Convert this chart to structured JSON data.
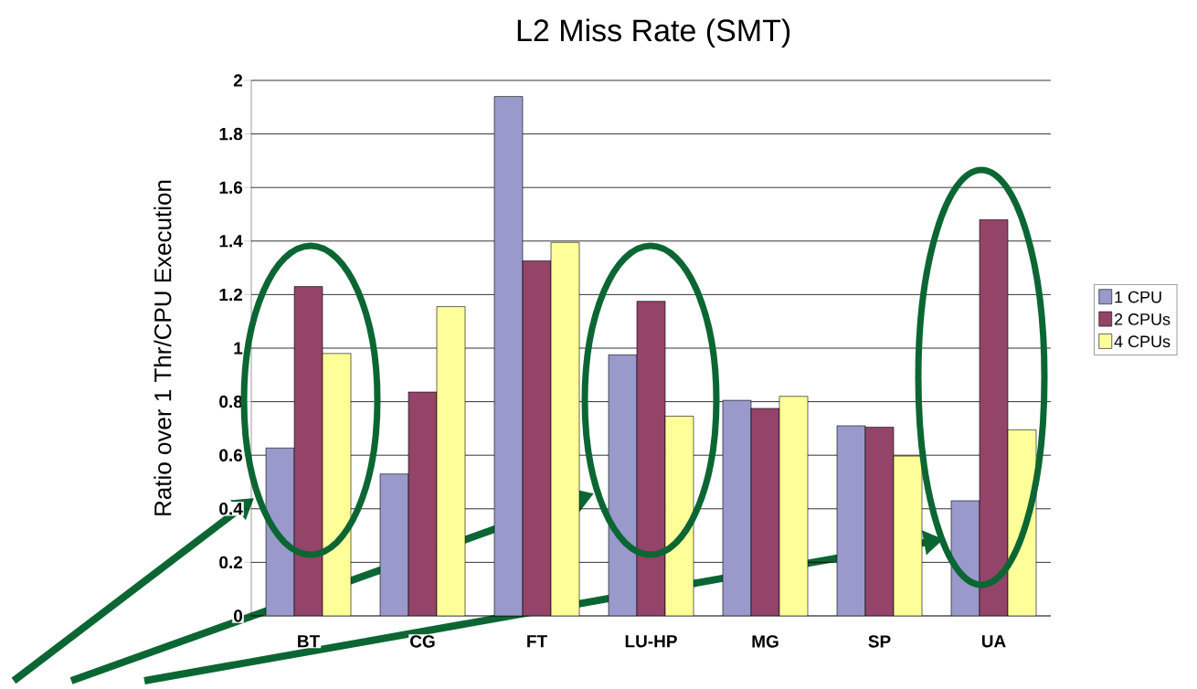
{
  "chart_data": {
    "type": "bar",
    "title": "L2 Miss Rate (SMT)",
    "ylabel": "Ratio over 1 Thr/CPU Execution",
    "categories": [
      "BT",
      "CG",
      "FT",
      "LU-HP",
      "MG",
      "SP",
      "UA"
    ],
    "series": [
      {
        "name": "1 CPU",
        "color": "#9999cc",
        "values": [
          0.627,
          0.53,
          1.94,
          0.975,
          0.805,
          0.71,
          0.43
        ]
      },
      {
        "name": "2 CPUs",
        "color": "#944468",
        "values": [
          1.23,
          0.836,
          1.326,
          1.175,
          0.775,
          0.705,
          1.48
        ]
      },
      {
        "name": "4 CPUs",
        "color": "#ffff99",
        "values": [
          0.98,
          1.155,
          1.395,
          0.746,
          0.82,
          0.597,
          0.695
        ]
      }
    ],
    "ylim": [
      0,
      2
    ],
    "yticks": [
      0,
      0.2,
      0.4,
      0.6,
      0.8,
      1,
      1.2,
      1.4,
      1.6,
      1.8,
      2
    ],
    "grid": "y",
    "legend": "right"
  }
}
